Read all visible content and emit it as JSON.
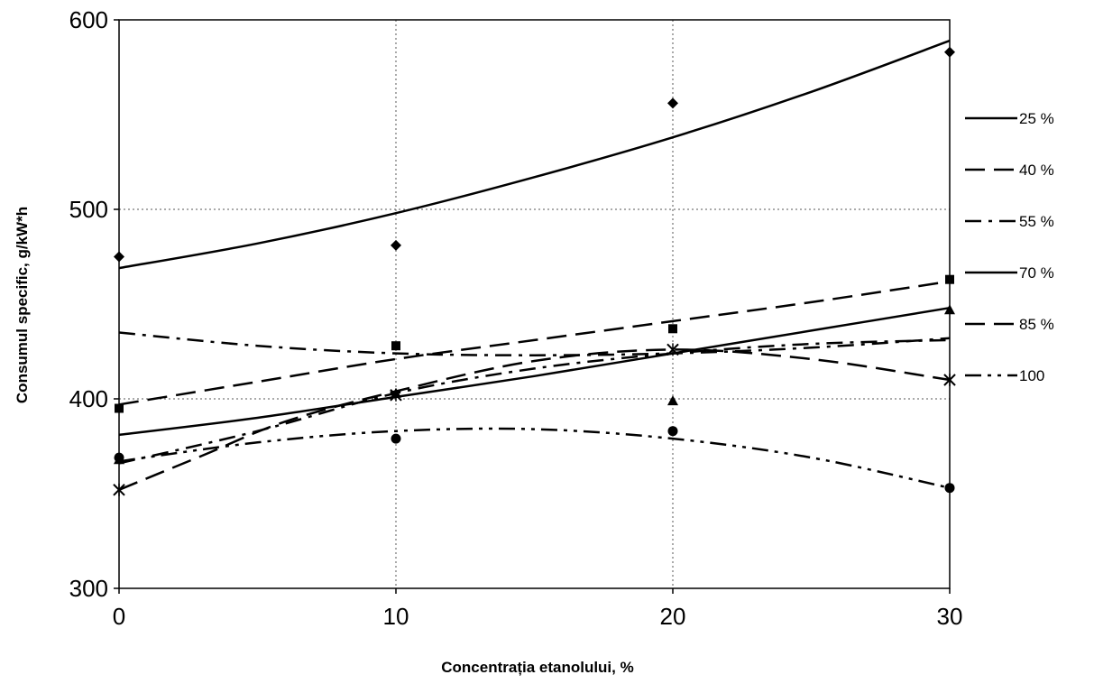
{
  "chart_data": {
    "type": "line",
    "xlabel": "Concentrația etanolului, %",
    "ylabel": "Consumul specific, g/kW*h",
    "xlim": [
      0,
      30
    ],
    "ylim": [
      300,
      600
    ],
    "x_ticks": [
      "0",
      "10",
      "20",
      "30"
    ],
    "y_ticks": [
      "300",
      "400",
      "500",
      "600"
    ],
    "grid": "vertical and horizontal dotted",
    "legend_position": "right",
    "x": [
      0,
      10,
      20,
      30
    ],
    "series": [
      {
        "name": "25 %",
        "marker": "diamond",
        "dash": "solid",
        "values": [
          475,
          481,
          556,
          583
        ],
        "trend": [
          [
            0,
            469
          ],
          [
            5,
            482
          ],
          [
            10,
            498
          ],
          [
            15,
            517
          ],
          [
            20,
            538
          ],
          [
            25,
            562
          ],
          [
            30,
            589
          ]
        ]
      },
      {
        "name": "40 %",
        "marker": "square",
        "dash": "longdash",
        "values": [
          395,
          428,
          437,
          463
        ],
        "trend": [
          [
            0,
            397
          ],
          [
            5,
            409
          ],
          [
            10,
            421
          ],
          [
            15,
            431
          ],
          [
            20,
            441
          ],
          [
            25,
            451
          ],
          [
            30,
            462
          ]
        ]
      },
      {
        "name": "55 %",
        "marker": "triangle",
        "dash": "dashdot",
        "values": [
          368,
          403,
          399,
          447
        ],
        "trend": [
          [
            0,
            366
          ],
          [
            5,
            383
          ],
          [
            10,
            403
          ],
          [
            15,
            416
          ],
          [
            20,
            424
          ],
          [
            25,
            429
          ],
          [
            30,
            431
          ]
        ]
      },
      {
        "name": "70 %",
        "marker": "x",
        "dash": "solid",
        "values": [
          352,
          402,
          426,
          410
        ],
        "trend": [
          [
            0,
            381
          ],
          [
            5,
            390
          ],
          [
            10,
            401
          ],
          [
            15,
            412
          ],
          [
            20,
            424
          ],
          [
            25,
            436
          ],
          [
            30,
            448
          ]
        ]
      },
      {
        "name": "85 %",
        "marker": "star",
        "dash": "longdash",
        "values": [
          352,
          402,
          426,
          410
        ],
        "trend": [
          [
            0,
            352
          ],
          [
            3,
            370
          ],
          [
            6,
            388
          ],
          [
            10,
            404
          ],
          [
            15,
            420
          ],
          [
            20,
            426
          ],
          [
            25,
            421
          ],
          [
            30,
            410
          ]
        ]
      },
      {
        "name": "100",
        "marker": "circle",
        "dash": "dashdotdot",
        "values": [
          369,
          379,
          383,
          353
        ],
        "trend": [
          [
            0,
            367
          ],
          [
            5,
            377
          ],
          [
            10,
            383
          ],
          [
            15,
            384
          ],
          [
            20,
            379
          ],
          [
            25,
            369
          ],
          [
            30,
            353
          ]
        ]
      }
    ],
    "secondary_curve": {
      "dash": "dashdot",
      "trend": [
        [
          0,
          435
        ],
        [
          5,
          428
        ],
        [
          10,
          424
        ],
        [
          15,
          423
        ],
        [
          20,
          424
        ],
        [
          25,
          427
        ],
        [
          30,
          432
        ]
      ]
    }
  }
}
